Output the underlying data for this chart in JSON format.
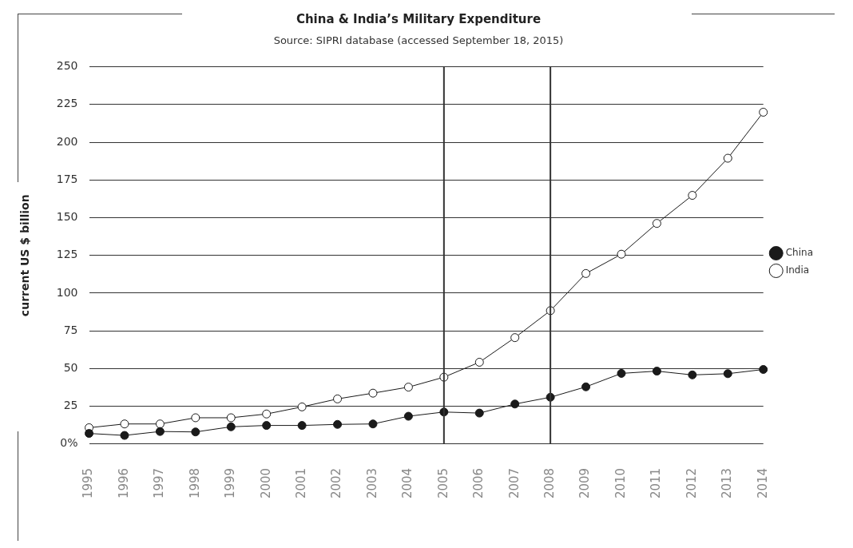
{
  "chart_data": {
    "type": "line",
    "title": "China & India’s Military Expenditure",
    "subtitle": "Source: SIPRI database (accessed September 18, 2015)",
    "ylabel": "current US $ billion",
    "categories": [
      "1995",
      "1996",
      "1997",
      "1998",
      "1999",
      "2000",
      "2001",
      "2002",
      "2003",
      "2004",
      "2005",
      "2006",
      "2007",
      "2008",
      "2009",
      "2010",
      "2011",
      "2012",
      "2013",
      "2014"
    ],
    "series": [
      {
        "name": "China",
        "color": "#1a1a1a",
        "values": [
          7.0,
          5.7,
          8.3,
          8.0,
          11.4,
          12.3,
          12.3,
          13.0,
          13.3,
          18.4,
          21.2,
          20.5,
          26.5,
          31.0,
          37.9,
          46.8,
          48.3,
          45.8,
          46.6,
          49.4
        ]
      },
      {
        "name": "India",
        "color": "#ffffff",
        "values": [
          10.8,
          13.3,
          13.3,
          17.4,
          17.4,
          19.9,
          24.6,
          29.9,
          33.7,
          37.7,
          44.3,
          54.2,
          70.5,
          88.4,
          113.0,
          125.8,
          146.2,
          164.8,
          189.4,
          219.9
        ]
      }
    ],
    "ylim": [
      0,
      250
    ],
    "yticks": [
      {
        "value": 0,
        "label": "0%"
      },
      25,
      50,
      75,
      100,
      125,
      150,
      175,
      200,
      225,
      250
    ],
    "grid": "y",
    "legend": "right",
    "marker": "circle",
    "line_style": "solid",
    "ref_lines": [
      {
        "axis": "x",
        "value": "2005",
        "color": "#333333"
      },
      {
        "axis": "x",
        "value": "2008",
        "color": "#333333"
      }
    ]
  }
}
